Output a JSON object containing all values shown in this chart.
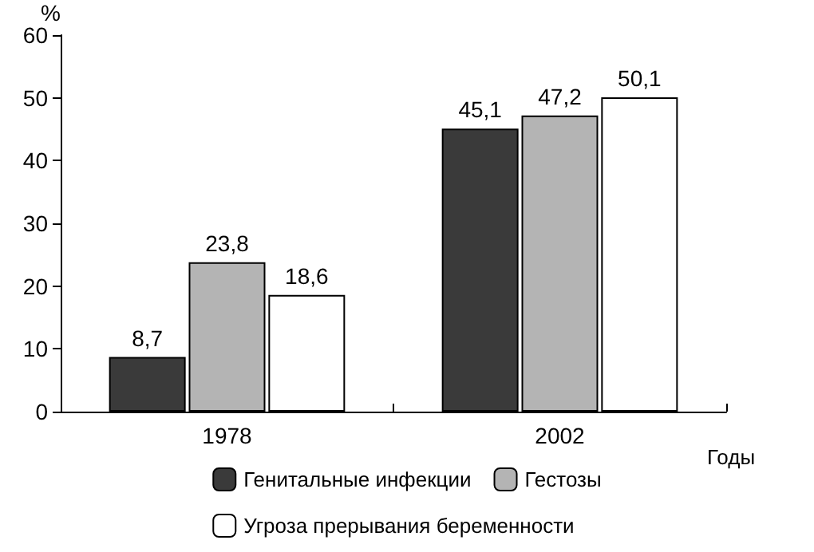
{
  "chart_data": {
    "type": "bar",
    "ylabel": "%",
    "xlabel": "Годы",
    "categories": [
      "1978",
      "2002"
    ],
    "series": [
      {
        "name": "Генитальные инфекции",
        "color": "#3a3a3a",
        "values": [
          8.7,
          45.1
        ],
        "value_labels": [
          "8,7",
          "45,1"
        ]
      },
      {
        "name": "Гестозы",
        "color": "#b4b4b4",
        "values": [
          23.8,
          47.2
        ],
        "value_labels": [
          "23,8",
          "47,2"
        ]
      },
      {
        "name": "Угроза прерывания беременности",
        "color": "#ffffff",
        "values": [
          18.6,
          50.1
        ],
        "value_labels": [
          "18,6",
          "50,1"
        ]
      }
    ],
    "ylim": [
      0,
      60
    ],
    "yticks": [
      0,
      10,
      20,
      30,
      40,
      50,
      60
    ],
    "legend": "bottom",
    "grid": false
  }
}
